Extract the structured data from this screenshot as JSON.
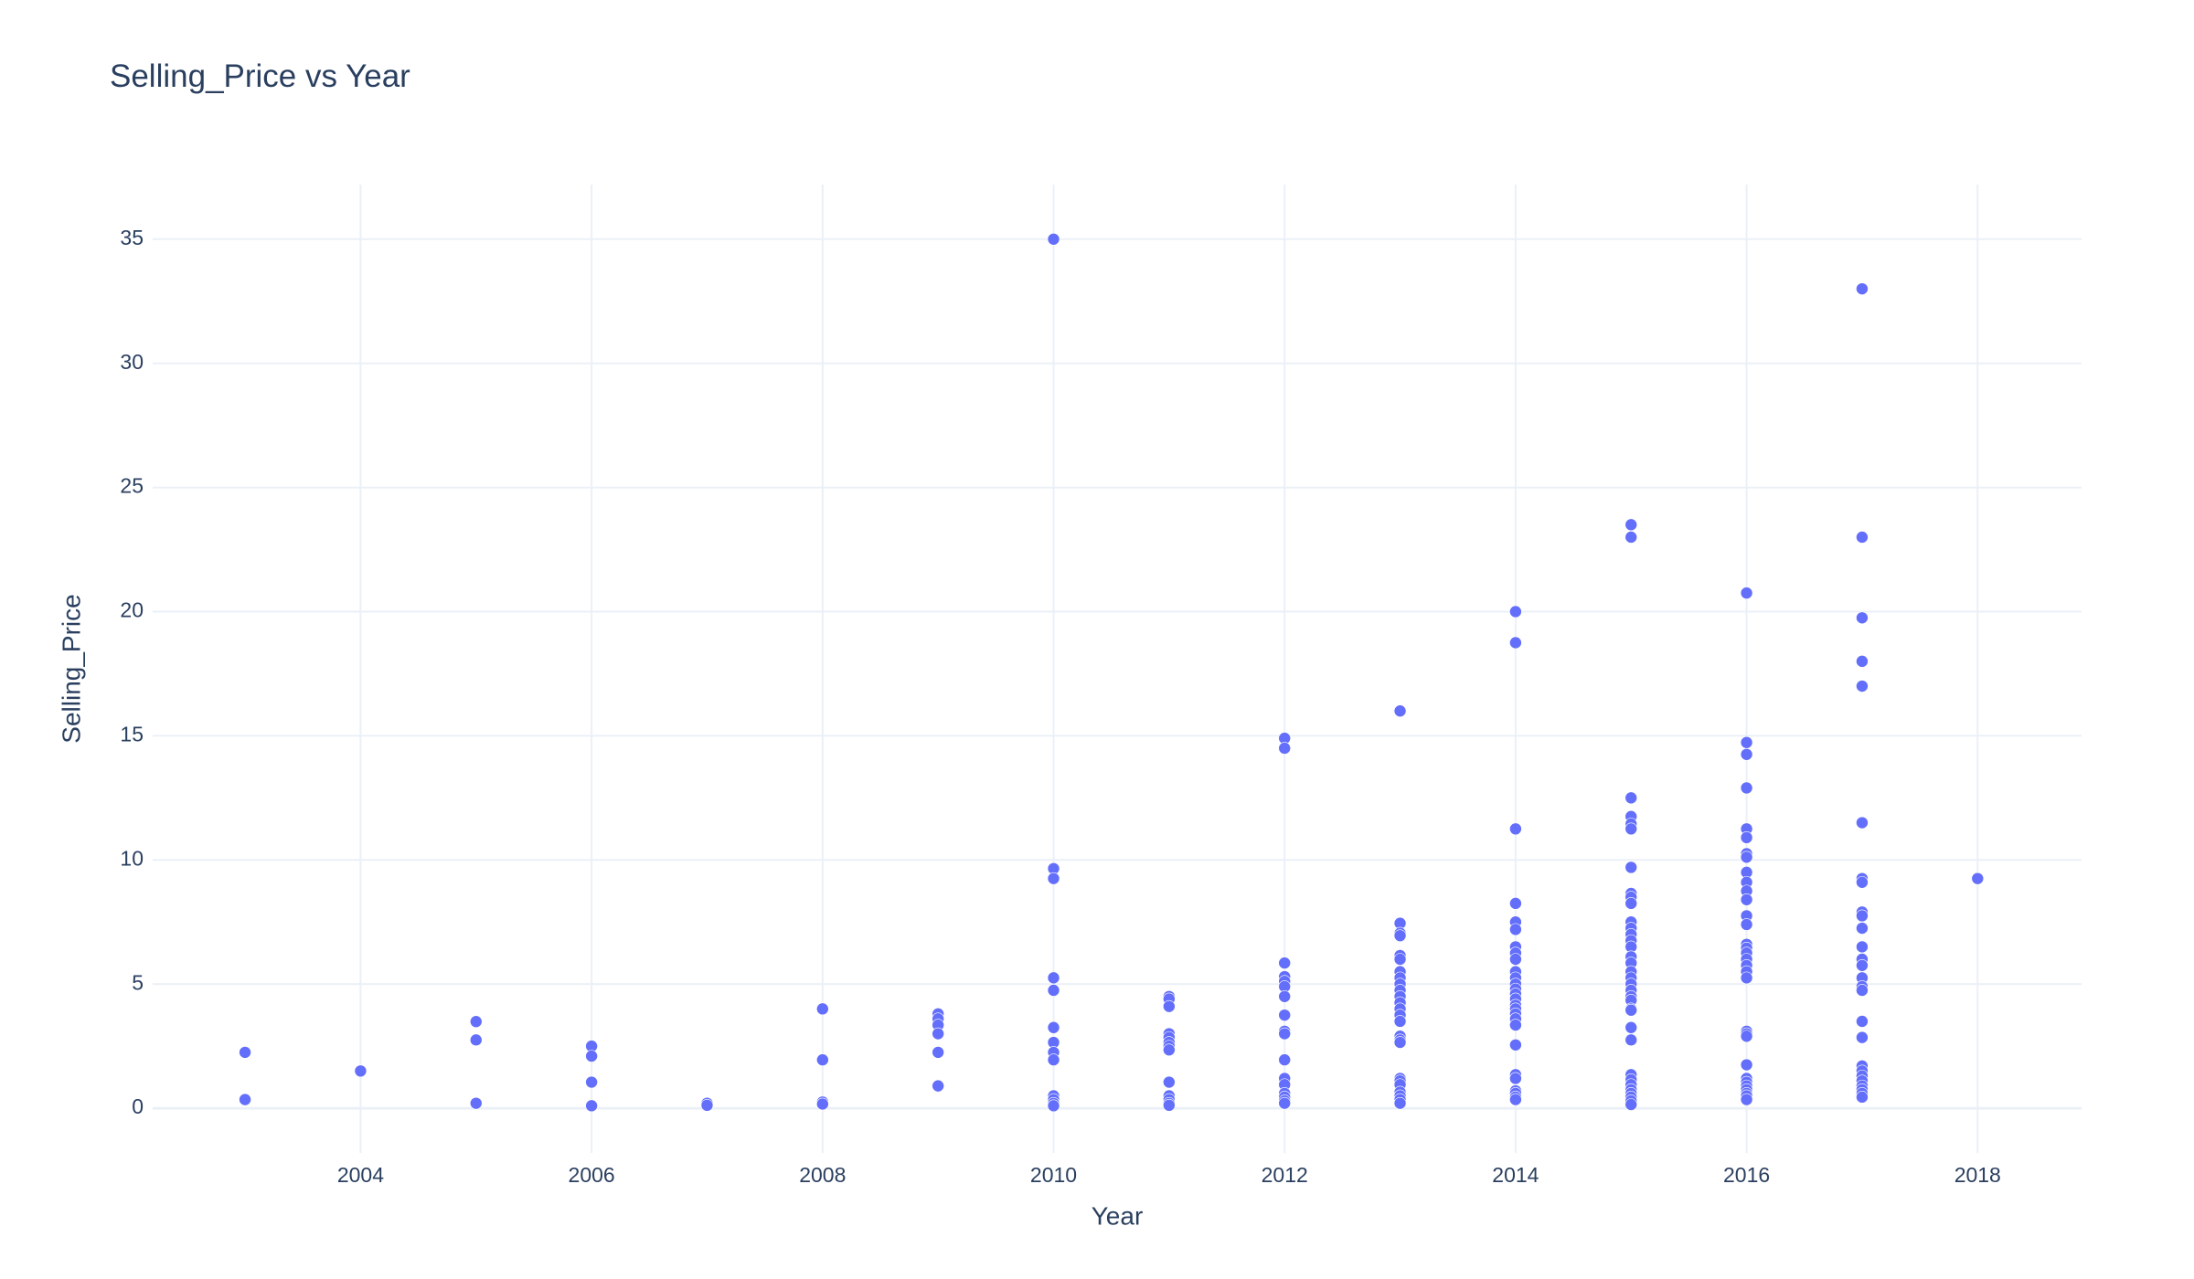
{
  "chart_data": {
    "type": "scatter",
    "title": "Selling_Price vs Year",
    "xlabel": "Year",
    "ylabel": "Selling_Price",
    "xlim": [
      2002.2,
      2018.9
    ],
    "ylim": [
      -1.8,
      37.2
    ],
    "x_ticks": [
      2004,
      2006,
      2008,
      2010,
      2012,
      2014,
      2016,
      2018
    ],
    "y_ticks": [
      0,
      5,
      10,
      15,
      20,
      25,
      30,
      35
    ],
    "grid": true,
    "marker_color": "#636efa",
    "points": [
      [
        2003,
        2.25
      ],
      [
        2003,
        0.35
      ],
      [
        2004,
        1.5
      ],
      [
        2005,
        3.49
      ],
      [
        2005,
        2.75
      ],
      [
        2005,
        0.2
      ],
      [
        2006,
        2.5
      ],
      [
        2006,
        2.1
      ],
      [
        2006,
        1.05
      ],
      [
        2006,
        0.1
      ],
      [
        2007,
        0.2
      ],
      [
        2007,
        0.12
      ],
      [
        2008,
        4.0
      ],
      [
        2008,
        1.95
      ],
      [
        2008,
        0.25
      ],
      [
        2008,
        0.17
      ],
      [
        2009,
        3.8
      ],
      [
        2009,
        3.6
      ],
      [
        2009,
        3.35
      ],
      [
        2009,
        3.0
      ],
      [
        2009,
        2.25
      ],
      [
        2009,
        0.9
      ],
      [
        2010,
        35.0
      ],
      [
        2010,
        9.65
      ],
      [
        2010,
        9.25
      ],
      [
        2010,
        5.25
      ],
      [
        2010,
        4.75
      ],
      [
        2010,
        3.25
      ],
      [
        2010,
        2.65
      ],
      [
        2010,
        2.25
      ],
      [
        2010,
        1.95
      ],
      [
        2010,
        0.5
      ],
      [
        2010,
        0.35
      ],
      [
        2010,
        0.2
      ],
      [
        2010,
        0.1
      ],
      [
        2011,
        4.5
      ],
      [
        2011,
        4.4
      ],
      [
        2011,
        4.1
      ],
      [
        2011,
        3.0
      ],
      [
        2011,
        2.85
      ],
      [
        2011,
        2.65
      ],
      [
        2011,
        2.5
      ],
      [
        2011,
        2.35
      ],
      [
        2011,
        1.05
      ],
      [
        2011,
        0.5
      ],
      [
        2011,
        0.35
      ],
      [
        2011,
        0.2
      ],
      [
        2011,
        0.12
      ],
      [
        2012,
        14.9
      ],
      [
        2012,
        14.5
      ],
      [
        2012,
        5.85
      ],
      [
        2012,
        5.3
      ],
      [
        2012,
        5.11
      ],
      [
        2012,
        4.9
      ],
      [
        2012,
        4.5
      ],
      [
        2012,
        3.75
      ],
      [
        2012,
        3.1
      ],
      [
        2012,
        3.0
      ],
      [
        2012,
        1.95
      ],
      [
        2012,
        1.2
      ],
      [
        2012,
        0.95
      ],
      [
        2012,
        0.6
      ],
      [
        2012,
        0.45
      ],
      [
        2012,
        0.3
      ],
      [
        2012,
        0.2
      ],
      [
        2013,
        16.0
      ],
      [
        2013,
        7.45
      ],
      [
        2013,
        7.05
      ],
      [
        2013,
        6.95
      ],
      [
        2013,
        6.15
      ],
      [
        2013,
        6.0
      ],
      [
        2013,
        5.5
      ],
      [
        2013,
        5.25
      ],
      [
        2013,
        5.0
      ],
      [
        2013,
        4.75
      ],
      [
        2013,
        4.5
      ],
      [
        2013,
        4.25
      ],
      [
        2013,
        4.0
      ],
      [
        2013,
        3.75
      ],
      [
        2013,
        3.5
      ],
      [
        2013,
        2.9
      ],
      [
        2013,
        2.75
      ],
      [
        2013,
        2.65
      ],
      [
        2013,
        1.2
      ],
      [
        2013,
        1.1
      ],
      [
        2013,
        0.95
      ],
      [
        2013,
        0.65
      ],
      [
        2013,
        0.5
      ],
      [
        2013,
        0.35
      ],
      [
        2013,
        0.2
      ],
      [
        2014,
        20.0
      ],
      [
        2014,
        18.75
      ],
      [
        2014,
        11.25
      ],
      [
        2014,
        8.25
      ],
      [
        2014,
        7.5
      ],
      [
        2014,
        7.2
      ],
      [
        2014,
        6.5
      ],
      [
        2014,
        6.25
      ],
      [
        2014,
        6.0
      ],
      [
        2014,
        5.5
      ],
      [
        2014,
        5.25
      ],
      [
        2014,
        5.0
      ],
      [
        2014,
        4.8
      ],
      [
        2014,
        4.6
      ],
      [
        2014,
        4.4
      ],
      [
        2014,
        4.15
      ],
      [
        2014,
        4.0
      ],
      [
        2014,
        3.8
      ],
      [
        2014,
        3.6
      ],
      [
        2014,
        3.35
      ],
      [
        2014,
        2.55
      ],
      [
        2014,
        1.35
      ],
      [
        2014,
        1.2
      ],
      [
        2014,
        0.7
      ],
      [
        2014,
        0.6
      ],
      [
        2014,
        0.45
      ],
      [
        2014,
        0.35
      ],
      [
        2015,
        23.5
      ],
      [
        2015,
        23.0
      ],
      [
        2015,
        12.5
      ],
      [
        2015,
        11.75
      ],
      [
        2015,
        11.45
      ],
      [
        2015,
        11.25
      ],
      [
        2015,
        9.7
      ],
      [
        2015,
        8.65
      ],
      [
        2015,
        8.5
      ],
      [
        2015,
        8.25
      ],
      [
        2015,
        7.5
      ],
      [
        2015,
        7.25
      ],
      [
        2015,
        7.0
      ],
      [
        2015,
        6.75
      ],
      [
        2015,
        6.5
      ],
      [
        2015,
        6.1
      ],
      [
        2015,
        5.85
      ],
      [
        2015,
        5.5
      ],
      [
        2015,
        5.25
      ],
      [
        2015,
        5.0
      ],
      [
        2015,
        4.75
      ],
      [
        2015,
        4.5
      ],
      [
        2015,
        4.35
      ],
      [
        2015,
        4.0
      ],
      [
        2015,
        3.95
      ],
      [
        2015,
        3.25
      ],
      [
        2015,
        2.75
      ],
      [
        2015,
        1.35
      ],
      [
        2015,
        1.15
      ],
      [
        2015,
        0.95
      ],
      [
        2015,
        0.75
      ],
      [
        2015,
        0.6
      ],
      [
        2015,
        0.45
      ],
      [
        2015,
        0.3
      ],
      [
        2015,
        0.15
      ],
      [
        2016,
        20.75
      ],
      [
        2016,
        14.73
      ],
      [
        2016,
        14.25
      ],
      [
        2016,
        12.9
      ],
      [
        2016,
        11.25
      ],
      [
        2016,
        10.9
      ],
      [
        2016,
        10.25
      ],
      [
        2016,
        10.11
      ],
      [
        2016,
        9.5
      ],
      [
        2016,
        9.1
      ],
      [
        2016,
        8.75
      ],
      [
        2016,
        8.4
      ],
      [
        2016,
        7.75
      ],
      [
        2016,
        7.4
      ],
      [
        2016,
        6.6
      ],
      [
        2016,
        6.45
      ],
      [
        2016,
        6.25
      ],
      [
        2016,
        6.0
      ],
      [
        2016,
        5.75
      ],
      [
        2016,
        5.5
      ],
      [
        2016,
        5.25
      ],
      [
        2016,
        3.1
      ],
      [
        2016,
        3.0
      ],
      [
        2016,
        2.9
      ],
      [
        2016,
        1.75
      ],
      [
        2016,
        1.2
      ],
      [
        2016,
        1.05
      ],
      [
        2016,
        0.9
      ],
      [
        2016,
        0.75
      ],
      [
        2016,
        0.6
      ],
      [
        2016,
        0.5
      ],
      [
        2016,
        0.35
      ],
      [
        2017,
        33.0
      ],
      [
        2017,
        23.0
      ],
      [
        2017,
        19.75
      ],
      [
        2017,
        18.0
      ],
      [
        2017,
        17.0
      ],
      [
        2017,
        11.5
      ],
      [
        2017,
        9.25
      ],
      [
        2017,
        9.1
      ],
      [
        2017,
        7.9
      ],
      [
        2017,
        7.75
      ],
      [
        2017,
        7.25
      ],
      [
        2017,
        6.5
      ],
      [
        2017,
        6.0
      ],
      [
        2017,
        5.75
      ],
      [
        2017,
        5.25
      ],
      [
        2017,
        4.9
      ],
      [
        2017,
        4.75
      ],
      [
        2017,
        3.5
      ],
      [
        2017,
        2.85
      ],
      [
        2017,
        1.7
      ],
      [
        2017,
        1.5
      ],
      [
        2017,
        1.3
      ],
      [
        2017,
        1.1
      ],
      [
        2017,
        0.9
      ],
      [
        2017,
        0.75
      ],
      [
        2017,
        0.6
      ],
      [
        2017,
        0.45
      ],
      [
        2018,
        9.25
      ]
    ]
  }
}
